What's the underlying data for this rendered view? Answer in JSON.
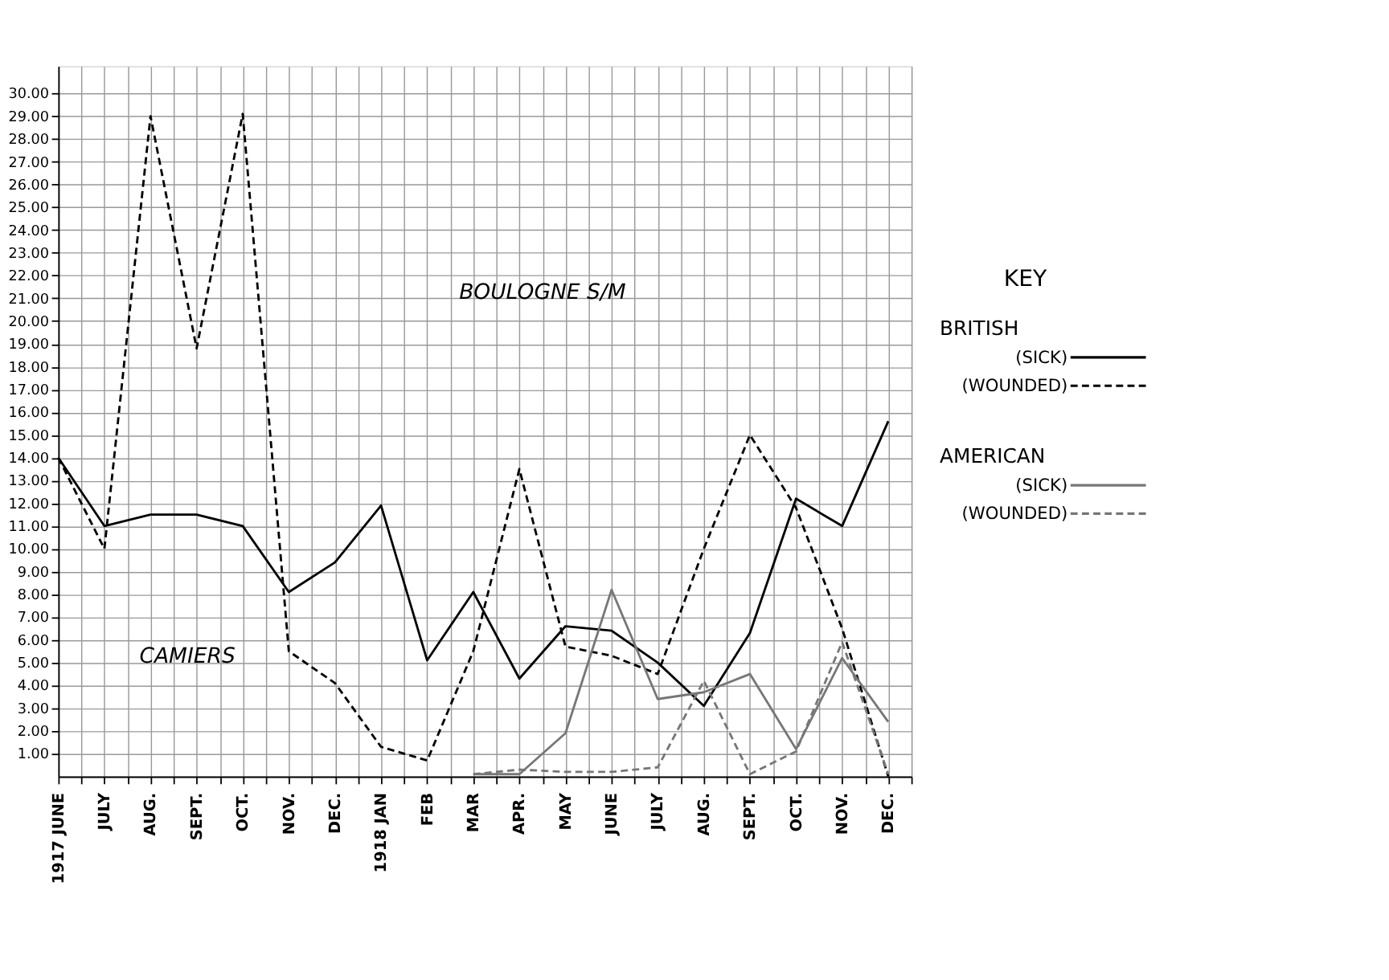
{
  "chart_data": {
    "type": "line",
    "categories": [
      "1917 JUNE",
      "JULY",
      "AUG.",
      "SEPT.",
      "OCT.",
      "NOV.",
      "DEC.",
      "1918 JAN",
      "FEB",
      "MAR",
      "APR.",
      "MAY",
      "JUNE",
      "JULY",
      "AUG.",
      "SEPT.",
      "OCT.",
      "NOV.",
      "DEC."
    ],
    "series": [
      {
        "name": "(SICK)",
        "color": "#000000",
        "line_style": "solid",
        "values": [
          14.0,
          11.0,
          11.5,
          11.5,
          11.0,
          8.1,
          9.4,
          11.9,
          5.1,
          8.1,
          4.3,
          6.6,
          6.4,
          5.0,
          3.1,
          6.3,
          12.2,
          11.0,
          15.6
        ]
      },
      {
        "name": "(WOUNDED)",
        "color": "#000000",
        "line_style": "dashed",
        "values": [
          14.0,
          10.0,
          29.0,
          18.8,
          29.1,
          5.5,
          4.1,
          1.3,
          0.7,
          5.5,
          13.5,
          5.7,
          5.3,
          4.5,
          10.0,
          15.0,
          11.8,
          6.5,
          0.0
        ]
      },
      {
        "name": "(SICK)",
        "color": "#777777",
        "line_style": "solid",
        "values": [
          null,
          null,
          null,
          null,
          null,
          null,
          null,
          null,
          null,
          0.1,
          0.1,
          1.9,
          8.2,
          3.4,
          3.7,
          4.5,
          1.2,
          5.2,
          2.4
        ]
      },
      {
        "name": "(WOUNDED)",
        "color": "#777777",
        "line_style": "dashed",
        "values": [
          null,
          null,
          null,
          null,
          null,
          null,
          null,
          null,
          null,
          0.1,
          0.3,
          0.2,
          0.2,
          0.4,
          4.2,
          0.1,
          1.1,
          5.9,
          0.1
        ]
      }
    ],
    "legend_title": "KEY",
    "annotations": [
      "BOULOGNE S/M",
      "CAMIERS",
      "BRITISH",
      "AMERICAN"
    ],
    "ylim": [
      0,
      31.2
    ],
    "yticks": [
      {
        "value": 1,
        "label": "1.00"
      },
      {
        "value": 2,
        "label": "2.00"
      },
      {
        "value": 3,
        "label": "3.00"
      },
      {
        "value": 4,
        "label": "4.00"
      },
      {
        "value": 5,
        "label": "5.00"
      },
      {
        "value": 6,
        "label": "6.00"
      },
      {
        "value": 7,
        "label": "7.00"
      },
      {
        "value": 8,
        "label": "8.00"
      },
      {
        "value": 9,
        "label": "9.00"
      },
      {
        "value": 10,
        "label": "10.00"
      },
      {
        "value": 11,
        "label": "11.00"
      },
      {
        "value": 12,
        "label": "12.00"
      },
      {
        "value": 13,
        "label": "13.00"
      },
      {
        "value": 14,
        "label": "14.00"
      },
      {
        "value": 15,
        "label": "15.00"
      },
      {
        "value": 16,
        "label": "16.00"
      },
      {
        "value": 17,
        "label": "17.00"
      },
      {
        "value": 18,
        "label": "18.00"
      },
      {
        "value": 19,
        "label": "19.00"
      },
      {
        "value": 20,
        "label": "20.00"
      },
      {
        "value": 21,
        "label": "21.00"
      },
      {
        "value": 22,
        "label": "22.00"
      },
      {
        "value": 23,
        "label": "23.00"
      },
      {
        "value": 24,
        "label": "24.00"
      },
      {
        "value": 25,
        "label": "25.00"
      },
      {
        "value": 26,
        "label": "26.00"
      },
      {
        "value": 27,
        "label": "27.00"
      },
      {
        "value": 28,
        "label": "28.00"
      },
      {
        "value": 29,
        "label": "29.00"
      },
      {
        "value": 30,
        "label": "30.00"
      }
    ],
    "grid": true,
    "legend": "right",
    "marker": "none"
  }
}
